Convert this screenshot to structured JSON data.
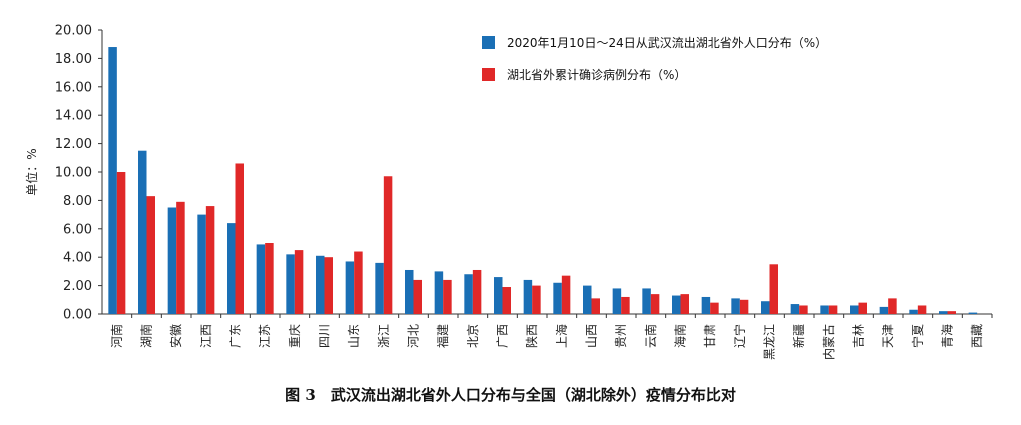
{
  "chart_data": {
    "type": "bar",
    "ylabel": "单位：%",
    "ylim": [
      0,
      20
    ],
    "yticks": [
      "0.00",
      "2.00",
      "4.00",
      "6.00",
      "8.00",
      "10.00",
      "12.00",
      "14.00",
      "16.00",
      "18.00",
      "20.00"
    ],
    "categories": [
      "河南",
      "湖南",
      "安徽",
      "江西",
      "广东",
      "江苏",
      "重庆",
      "四川",
      "山东",
      "浙江",
      "河北",
      "福建",
      "北京",
      "广西",
      "陕西",
      "上海",
      "山西",
      "贵州",
      "云南",
      "海南",
      "甘肃",
      "辽宁",
      "黑龙江",
      "新疆",
      "内蒙古",
      "吉林",
      "天津",
      "宁夏",
      "青海",
      "西藏"
    ],
    "series": [
      {
        "name": "2020年1月10日～24日从武汉流出湖北省外人口分布（%）",
        "color": "#1a6fb5",
        "values": [
          18.8,
          11.5,
          7.5,
          7.0,
          6.4,
          4.9,
          4.2,
          4.1,
          3.7,
          3.6,
          3.1,
          3.0,
          2.8,
          2.6,
          2.4,
          2.2,
          2.0,
          1.8,
          1.8,
          1.3,
          1.2,
          1.1,
          0.9,
          0.7,
          0.6,
          0.6,
          0.5,
          0.3,
          0.2,
          0.1
        ]
      },
      {
        "name": "湖北省外累计确诊病例分布（%）",
        "color": "#e02828",
        "values": [
          10.0,
          8.3,
          7.9,
          7.6,
          10.6,
          5.0,
          4.5,
          4.0,
          4.4,
          9.7,
          2.4,
          2.4,
          3.1,
          1.9,
          2.0,
          2.7,
          1.1,
          1.2,
          1.4,
          1.4,
          0.8,
          1.0,
          3.5,
          0.6,
          0.6,
          0.8,
          1.1,
          0.6,
          0.2,
          0.0
        ]
      }
    ],
    "grid": false,
    "legend_position": "top-right"
  },
  "caption": "图 3　武汉流出湖北省外人口分布与全国（湖北除外）疫情分布比对"
}
